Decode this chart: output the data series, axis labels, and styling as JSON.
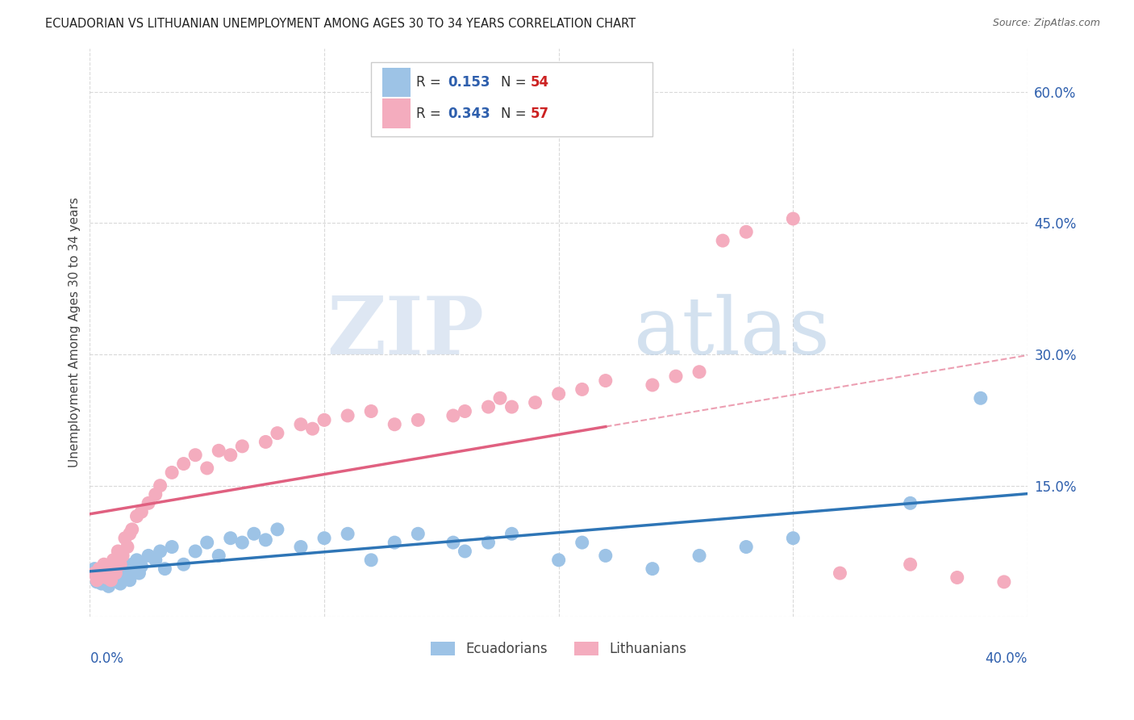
{
  "title": "ECUADORIAN VS LITHUANIAN UNEMPLOYMENT AMONG AGES 30 TO 34 YEARS CORRELATION CHART",
  "source": "Source: ZipAtlas.com",
  "ylabel": "Unemployment Among Ages 30 to 34 years",
  "xlim": [
    0.0,
    0.4
  ],
  "ylim": [
    0.0,
    0.65
  ],
  "yticks": [
    0.0,
    0.15,
    0.3,
    0.45,
    0.6
  ],
  "ytick_labels": [
    "",
    "15.0%",
    "30.0%",
    "45.0%",
    "60.0%"
  ],
  "xticks": [
    0.0,
    0.1,
    0.2,
    0.3,
    0.4
  ],
  "ecuadorian_color": "#9dc3e6",
  "ecuadorian_line_color": "#2e75b6",
  "lithuanian_color": "#f4acbe",
  "lithuanian_line_color": "#e06080",
  "ecuadorian_R": 0.153,
  "ecuadorian_N": 54,
  "lithuanian_R": 0.343,
  "lithuanian_N": 57,
  "ecuadorian_scatter_x": [
    0.002,
    0.003,
    0.004,
    0.005,
    0.006,
    0.007,
    0.008,
    0.009,
    0.01,
    0.011,
    0.012,
    0.013,
    0.014,
    0.015,
    0.016,
    0.017,
    0.018,
    0.019,
    0.02,
    0.021,
    0.022,
    0.025,
    0.028,
    0.03,
    0.032,
    0.035,
    0.04,
    0.045,
    0.05,
    0.055,
    0.06,
    0.065,
    0.07,
    0.075,
    0.08,
    0.09,
    0.1,
    0.11,
    0.12,
    0.13,
    0.14,
    0.155,
    0.16,
    0.17,
    0.18,
    0.2,
    0.21,
    0.22,
    0.24,
    0.26,
    0.28,
    0.3,
    0.35,
    0.38
  ],
  "ecuadorian_scatter_y": [
    0.055,
    0.04,
    0.045,
    0.038,
    0.05,
    0.042,
    0.035,
    0.048,
    0.052,
    0.043,
    0.06,
    0.038,
    0.045,
    0.055,
    0.048,
    0.042,
    0.06,
    0.055,
    0.065,
    0.05,
    0.058,
    0.07,
    0.065,
    0.075,
    0.055,
    0.08,
    0.06,
    0.075,
    0.085,
    0.07,
    0.09,
    0.085,
    0.095,
    0.088,
    0.1,
    0.08,
    0.09,
    0.095,
    0.065,
    0.085,
    0.095,
    0.085,
    0.075,
    0.085,
    0.095,
    0.065,
    0.085,
    0.07,
    0.055,
    0.07,
    0.08,
    0.09,
    0.13,
    0.25
  ],
  "lithuanian_scatter_x": [
    0.002,
    0.003,
    0.004,
    0.005,
    0.006,
    0.007,
    0.008,
    0.009,
    0.01,
    0.011,
    0.012,
    0.013,
    0.014,
    0.015,
    0.016,
    0.017,
    0.018,
    0.02,
    0.022,
    0.025,
    0.028,
    0.03,
    0.035,
    0.04,
    0.045,
    0.05,
    0.055,
    0.06,
    0.065,
    0.075,
    0.08,
    0.09,
    0.095,
    0.1,
    0.11,
    0.12,
    0.13,
    0.14,
    0.155,
    0.16,
    0.17,
    0.175,
    0.18,
    0.19,
    0.2,
    0.21,
    0.22,
    0.24,
    0.25,
    0.26,
    0.27,
    0.28,
    0.3,
    0.32,
    0.35,
    0.37,
    0.39
  ],
  "lithuanian_scatter_y": [
    0.05,
    0.042,
    0.055,
    0.048,
    0.06,
    0.045,
    0.058,
    0.042,
    0.065,
    0.05,
    0.075,
    0.06,
    0.07,
    0.09,
    0.08,
    0.095,
    0.1,
    0.115,
    0.12,
    0.13,
    0.14,
    0.15,
    0.165,
    0.175,
    0.185,
    0.17,
    0.19,
    0.185,
    0.195,
    0.2,
    0.21,
    0.22,
    0.215,
    0.225,
    0.23,
    0.235,
    0.22,
    0.225,
    0.23,
    0.235,
    0.24,
    0.25,
    0.24,
    0.245,
    0.255,
    0.26,
    0.27,
    0.265,
    0.275,
    0.28,
    0.43,
    0.44,
    0.455,
    0.05,
    0.06,
    0.045,
    0.04
  ],
  "watermark_zip": "ZIP",
  "watermark_atlas": "atlas",
  "background_color": "#ffffff",
  "grid_color": "#d0d0d0",
  "title_color": "#222222",
  "source_color": "#666666"
}
